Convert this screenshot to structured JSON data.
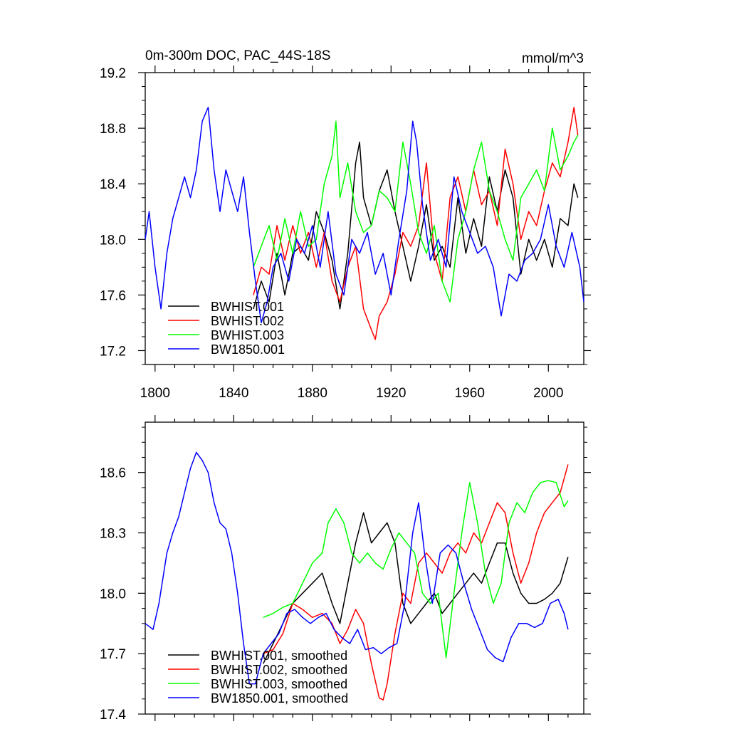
{
  "chart_data": [
    {
      "type": "line",
      "title": "0m-300m DOC, PAC_44S-18S",
      "units": "mmol/m^3",
      "xlim": [
        1795,
        2018
      ],
      "ylim": [
        17.1,
        19.2
      ],
      "xticks": [
        1800,
        1840,
        1880,
        1920,
        1960,
        2000
      ],
      "yticks": [
        17.2,
        17.6,
        18.0,
        18.4,
        18.8,
        19.2
      ],
      "ytick_labels": [
        "17.2",
        "17.6",
        "18.0",
        "18.4",
        "18.8",
        "19.2"
      ],
      "legend_position": "bottom-left",
      "series": [
        {
          "name": "BWHIST.001",
          "color": "#000000",
          "x": [
            1850,
            1854,
            1858,
            1862,
            1866,
            1870,
            1874,
            1878,
            1882,
            1886,
            1890,
            1894,
            1898,
            1902,
            1904,
            1906,
            1910,
            1914,
            1918,
            1922,
            1926,
            1930,
            1934,
            1938,
            1942,
            1946,
            1950,
            1954,
            1958,
            1962,
            1966,
            1970,
            1974,
            1978,
            1982,
            1986,
            1990,
            1994,
            1998,
            2002,
            2006,
            2010,
            2013,
            2015
          ],
          "y": [
            17.5,
            17.7,
            17.55,
            17.9,
            17.6,
            17.9,
            17.95,
            17.85,
            18.2,
            18.05,
            17.85,
            17.5,
            17.9,
            18.55,
            18.7,
            18.3,
            18.1,
            18.35,
            18.5,
            18.2,
            17.95,
            17.7,
            17.95,
            18.25,
            17.85,
            17.95,
            17.8,
            18.3,
            17.9,
            18.15,
            17.95,
            18.45,
            18.2,
            18.5,
            18.3,
            17.75,
            18.0,
            17.85,
            18.0,
            17.8,
            18.15,
            18.1,
            18.4,
            18.3
          ]
        },
        {
          "name": "BWHIST.002",
          "color": "#ff0000",
          "x": [
            1850,
            1854,
            1858,
            1862,
            1866,
            1870,
            1874,
            1878,
            1882,
            1886,
            1890,
            1894,
            1898,
            1902,
            1906,
            1910,
            1912,
            1914,
            1918,
            1922,
            1926,
            1930,
            1934,
            1938,
            1942,
            1946,
            1950,
            1954,
            1958,
            1962,
            1966,
            1970,
            1974,
            1978,
            1982,
            1986,
            1990,
            1994,
            1998,
            2002,
            2006,
            2010,
            2013,
            2015
          ],
          "y": [
            17.6,
            17.8,
            17.75,
            18.1,
            17.85,
            18.1,
            17.9,
            18.05,
            17.8,
            18.05,
            17.7,
            17.55,
            17.8,
            17.95,
            17.5,
            17.35,
            17.28,
            17.45,
            17.55,
            17.75,
            18.05,
            17.95,
            18.1,
            18.55,
            17.9,
            17.7,
            18.3,
            18.45,
            18.2,
            18.5,
            18.25,
            18.35,
            18.1,
            18.65,
            18.4,
            18.0,
            18.2,
            18.1,
            18.35,
            18.55,
            18.45,
            18.7,
            18.95,
            18.75
          ]
        },
        {
          "name": "BWHIST.003",
          "color": "#00ff00",
          "x": [
            1850,
            1854,
            1858,
            1862,
            1866,
            1870,
            1874,
            1878,
            1882,
            1886,
            1890,
            1892,
            1894,
            1898,
            1902,
            1906,
            1910,
            1914,
            1918,
            1922,
            1926,
            1930,
            1934,
            1938,
            1942,
            1946,
            1950,
            1954,
            1958,
            1962,
            1966,
            1970,
            1974,
            1978,
            1982,
            1986,
            1990,
            1994,
            1998,
            2002,
            2006,
            2010,
            2013,
            2015
          ],
          "y": [
            17.8,
            17.95,
            18.1,
            17.85,
            18.15,
            17.9,
            18.2,
            17.95,
            18.0,
            18.4,
            18.6,
            18.85,
            18.3,
            18.55,
            18.2,
            18.05,
            18.1,
            18.35,
            18.3,
            18.2,
            18.7,
            18.4,
            18.05,
            17.9,
            18.1,
            17.7,
            17.55,
            18.0,
            18.2,
            18.5,
            18.7,
            18.35,
            18.2,
            18.0,
            17.85,
            18.3,
            18.4,
            18.5,
            18.35,
            18.8,
            18.5,
            18.6,
            18.7,
            18.75
          ]
        },
        {
          "name": "BW1850.001",
          "color": "#0000ff",
          "x": [
            1795,
            1797,
            1800,
            1803,
            1806,
            1809,
            1812,
            1815,
            1818,
            1821,
            1824,
            1827,
            1830,
            1833,
            1836,
            1839,
            1842,
            1845,
            1848,
            1851,
            1854,
            1857,
            1860,
            1864,
            1868,
            1872,
            1876,
            1880,
            1884,
            1888,
            1892,
            1896,
            1900,
            1904,
            1908,
            1912,
            1916,
            1920,
            1924,
            1928,
            1931,
            1933,
            1936,
            1940,
            1944,
            1948,
            1952,
            1956,
            1960,
            1964,
            1968,
            1972,
            1976,
            1980,
            1984,
            1988,
            1992,
            1996,
            2000,
            2004,
            2008,
            2012,
            2016,
            2018
          ],
          "y": [
            18.0,
            18.2,
            17.8,
            17.5,
            17.9,
            18.15,
            18.3,
            18.45,
            18.3,
            18.5,
            18.85,
            18.95,
            18.5,
            18.2,
            18.5,
            18.35,
            18.2,
            18.45,
            18.05,
            17.7,
            17.4,
            17.55,
            17.8,
            17.9,
            17.7,
            18.0,
            17.9,
            18.1,
            17.8,
            18.2,
            17.75,
            17.6,
            18.0,
            17.9,
            18.05,
            17.75,
            17.9,
            17.6,
            18.0,
            18.35,
            18.85,
            18.7,
            18.25,
            17.85,
            18.0,
            17.8,
            18.45,
            18.2,
            18.05,
            17.9,
            17.95,
            17.8,
            17.45,
            17.75,
            17.7,
            17.85,
            17.9,
            18.0,
            18.25,
            17.95,
            17.8,
            18.05,
            17.8,
            17.55
          ]
        }
      ]
    },
    {
      "type": "line",
      "title": "",
      "xlim": [
        1795,
        2018
      ],
      "ylim": [
        17.4,
        18.85
      ],
      "yticks": [
        17.4,
        17.7,
        18.0,
        18.3,
        18.6
      ],
      "ytick_labels": [
        "17.4",
        "17.7",
        "18.0",
        "18.3",
        "18.6"
      ],
      "legend_position": "bottom-left",
      "series": [
        {
          "name": "BWHIST.001, smoothed",
          "color": "#000000",
          "x": [
            1855,
            1860,
            1865,
            1870,
            1875,
            1880,
            1885,
            1890,
            1894,
            1898,
            1902,
            1906,
            1910,
            1914,
            1918,
            1922,
            1926,
            1930,
            1934,
            1938,
            1942,
            1946,
            1950,
            1954,
            1958,
            1962,
            1966,
            1970,
            1974,
            1978,
            1982,
            1986,
            1990,
            1994,
            1998,
            2002,
            2006,
            2010
          ],
          "y": [
            17.65,
            17.75,
            17.85,
            17.95,
            18.0,
            18.05,
            18.1,
            17.95,
            17.85,
            18.05,
            18.25,
            18.4,
            18.25,
            18.3,
            18.35,
            18.25,
            17.95,
            17.85,
            17.9,
            17.95,
            18.0,
            17.9,
            17.95,
            18.0,
            18.05,
            18.1,
            18.05,
            18.15,
            18.25,
            18.25,
            18.1,
            18.0,
            17.95,
            17.95,
            17.97,
            18.0,
            18.05,
            18.18
          ]
        },
        {
          "name": "BWHIST.002, smoothed",
          "color": "#ff0000",
          "x": [
            1855,
            1860,
            1865,
            1870,
            1875,
            1880,
            1885,
            1890,
            1894,
            1898,
            1902,
            1906,
            1910,
            1914,
            1916,
            1918,
            1922,
            1926,
            1930,
            1934,
            1938,
            1942,
            1946,
            1950,
            1954,
            1958,
            1962,
            1966,
            1970,
            1974,
            1978,
            1982,
            1986,
            1990,
            1994,
            1998,
            2002,
            2006,
            2010
          ],
          "y": [
            17.7,
            17.72,
            17.8,
            17.95,
            17.92,
            17.88,
            17.9,
            17.85,
            17.75,
            17.82,
            17.92,
            17.85,
            17.65,
            17.48,
            17.47,
            17.55,
            17.8,
            18.0,
            17.95,
            18.15,
            18.2,
            18.15,
            18.1,
            18.2,
            18.25,
            18.2,
            18.3,
            18.25,
            18.35,
            18.45,
            18.4,
            18.2,
            18.05,
            18.15,
            18.3,
            18.4,
            18.45,
            18.5,
            18.64
          ]
        },
        {
          "name": "BWHIST.003, smoothed",
          "color": "#00ff00",
          "x": [
            1855,
            1860,
            1865,
            1870,
            1875,
            1880,
            1885,
            1888,
            1892,
            1896,
            1900,
            1904,
            1908,
            1912,
            1916,
            1920,
            1924,
            1928,
            1932,
            1936,
            1940,
            1944,
            1948,
            1952,
            1956,
            1960,
            1964,
            1968,
            1972,
            1976,
            1980,
            1984,
            1988,
            1992,
            1996,
            2000,
            2004,
            2008,
            2010
          ],
          "y": [
            17.88,
            17.9,
            17.93,
            17.95,
            18.05,
            18.15,
            18.2,
            18.35,
            18.42,
            18.35,
            18.2,
            18.15,
            18.2,
            18.15,
            18.12,
            18.22,
            18.3,
            18.25,
            18.2,
            18.0,
            17.95,
            18.0,
            17.68,
            18.0,
            18.3,
            18.55,
            18.35,
            18.1,
            17.95,
            18.05,
            18.35,
            18.45,
            18.4,
            18.5,
            18.55,
            18.56,
            18.55,
            18.43,
            18.46
          ]
        },
        {
          "name": "BW1850.001, smoothed",
          "color": "#0000ff",
          "x": [
            1795,
            1799,
            1802,
            1806,
            1809,
            1812,
            1815,
            1818,
            1821,
            1824,
            1827,
            1830,
            1833,
            1836,
            1839,
            1842,
            1845,
            1848,
            1851,
            1855,
            1859,
            1863,
            1867,
            1871,
            1875,
            1879,
            1883,
            1887,
            1891,
            1895,
            1899,
            1903,
            1907,
            1911,
            1915,
            1919,
            1923,
            1927,
            1931,
            1934,
            1937,
            1941,
            1945,
            1949,
            1953,
            1957,
            1961,
            1965,
            1969,
            1973,
            1977,
            1981,
            1985,
            1989,
            1993,
            1997,
            2001,
            2005,
            2008,
            2010
          ],
          "y": [
            17.85,
            17.82,
            17.95,
            18.2,
            18.3,
            18.38,
            18.5,
            18.62,
            18.7,
            18.66,
            18.6,
            18.45,
            18.35,
            18.32,
            18.2,
            18.0,
            17.75,
            17.55,
            17.55,
            17.7,
            17.75,
            17.8,
            17.9,
            17.92,
            17.88,
            17.85,
            17.88,
            17.9,
            17.82,
            17.78,
            17.75,
            17.82,
            17.72,
            17.73,
            17.7,
            17.73,
            17.75,
            17.95,
            18.3,
            18.45,
            18.2,
            17.95,
            18.2,
            18.24,
            18.2,
            18.05,
            17.92,
            17.82,
            17.72,
            17.68,
            17.66,
            17.78,
            17.85,
            17.85,
            17.83,
            17.85,
            17.95,
            17.97,
            17.9,
            17.82
          ]
        }
      ]
    }
  ]
}
